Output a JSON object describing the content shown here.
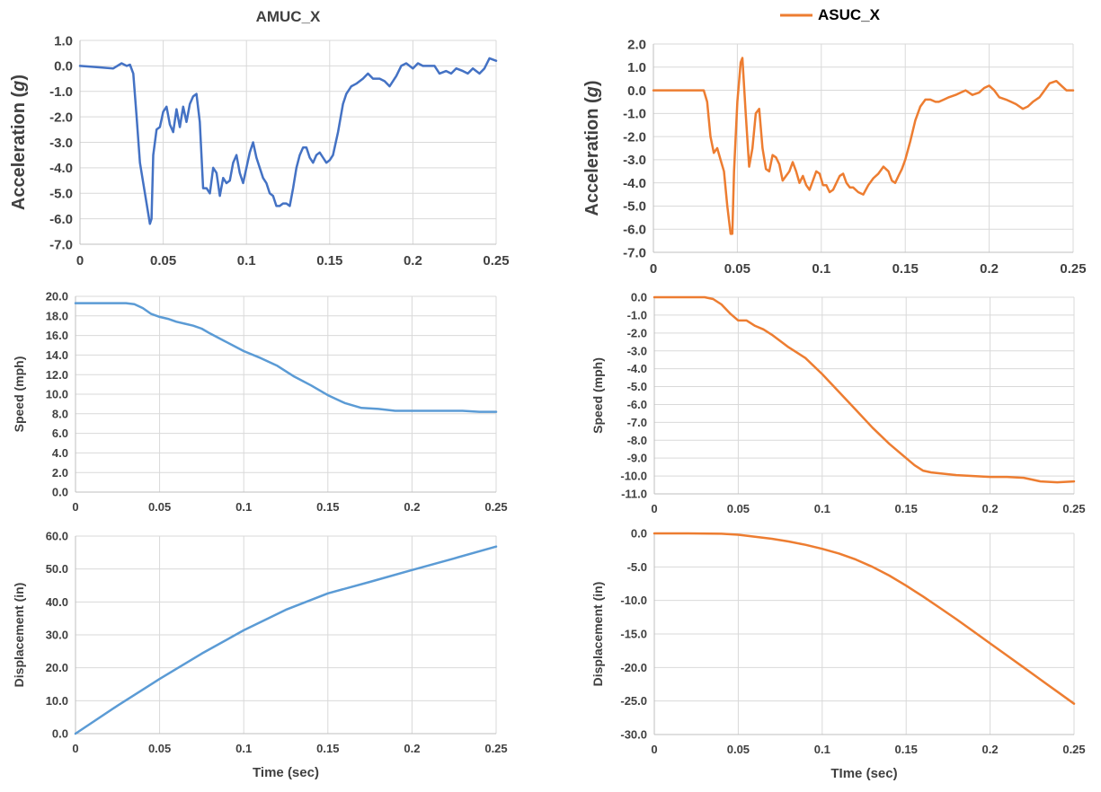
{
  "colors": {
    "left": "#4472C4",
    "left_light": "#5B9BD5",
    "right": "#ED7D31",
    "grid": "#d9d9d9",
    "axis": "#bfbfbf",
    "text": "#404040"
  },
  "chart_data": [
    {
      "id": "left-acc",
      "type": "line",
      "title": "AMUC_X",
      "xlabel": "",
      "ylabel": "Acceleration (g)",
      "xlim": [
        0,
        0.25
      ],
      "ylim": [
        -7,
        1
      ],
      "xticks": [
        "0",
        "0.05",
        "0.1",
        "0.15",
        "0.2",
        "0.25"
      ],
      "yticks": [
        "1.0",
        "0.0",
        "-1.0",
        "-2.0",
        "-3.0",
        "-4.0",
        "-5.0",
        "-6.0",
        "-7.0"
      ],
      "series": [
        {
          "x": [
            0,
            0.01,
            0.02,
            0.025,
            0.028,
            0.03,
            0.032,
            0.034,
            0.036,
            0.038,
            0.04,
            0.042,
            0.043,
            0.044,
            0.046,
            0.048,
            0.05,
            0.052,
            0.054,
            0.056,
            0.058,
            0.06,
            0.062,
            0.064,
            0.066,
            0.068,
            0.07,
            0.072,
            0.074,
            0.076,
            0.078,
            0.08,
            0.082,
            0.084,
            0.086,
            0.088,
            0.09,
            0.092,
            0.094,
            0.096,
            0.098,
            0.1,
            0.102,
            0.104,
            0.106,
            0.108,
            0.11,
            0.112,
            0.114,
            0.116,
            0.118,
            0.12,
            0.122,
            0.124,
            0.126,
            0.128,
            0.13,
            0.132,
            0.134,
            0.136,
            0.138,
            0.14,
            0.142,
            0.144,
            0.146,
            0.148,
            0.15,
            0.152,
            0.155,
            0.158,
            0.16,
            0.163,
            0.166,
            0.17,
            0.173,
            0.176,
            0.18,
            0.183,
            0.186,
            0.19,
            0.193,
            0.196,
            0.2,
            0.203,
            0.206,
            0.21,
            0.213,
            0.216,
            0.22,
            0.223,
            0.226,
            0.23,
            0.233,
            0.236,
            0.24,
            0.243,
            0.246,
            0.25
          ],
          "y": [
            0,
            -0.05,
            -0.1,
            0.1,
            0,
            0.05,
            -0.3,
            -2,
            -3.8,
            -4.6,
            -5.4,
            -6.2,
            -6,
            -3.5,
            -2.5,
            -2.4,
            -1.8,
            -1.6,
            -2.3,
            -2.6,
            -1.7,
            -2.4,
            -1.6,
            -2.2,
            -1.5,
            -1.2,
            -1.1,
            -2.2,
            -4.8,
            -4.8,
            -5,
            -4,
            -4.2,
            -5.1,
            -4.4,
            -4.6,
            -4.5,
            -3.8,
            -3.5,
            -4.2,
            -4.6,
            -4,
            -3.4,
            -3,
            -3.6,
            -4,
            -4.4,
            -4.6,
            -5,
            -5.1,
            -5.5,
            -5.5,
            -5.4,
            -5.4,
            -5.5,
            -4.8,
            -4,
            -3.5,
            -3.2,
            -3.2,
            -3.6,
            -3.8,
            -3.5,
            -3.4,
            -3.6,
            -3.8,
            -3.7,
            -3.5,
            -2.6,
            -1.5,
            -1.1,
            -0.8,
            -0.7,
            -0.5,
            -0.3,
            -0.5,
            -0.5,
            -0.6,
            -0.8,
            -0.4,
            0,
            0.1,
            -0.1,
            0.1,
            0,
            0,
            0,
            -0.3,
            -0.2,
            -0.3,
            -0.1,
            -0.2,
            -0.3,
            -0.1,
            -0.3,
            -0.1,
            0.3,
            0.2
          ]
        }
      ]
    },
    {
      "id": "left-speed",
      "type": "line",
      "title": "",
      "xlabel": "",
      "ylabel": "Speed (mph)",
      "xlim": [
        0,
        0.25
      ],
      "ylim": [
        0,
        20
      ],
      "xticks": [
        "0",
        "0.05",
        "0.1",
        "0.15",
        "0.2",
        "0.25"
      ],
      "yticks": [
        "20.0",
        "18.0",
        "16.0",
        "14.0",
        "12.0",
        "10.0",
        "8.0",
        "6.0",
        "4.0",
        "2.0",
        "0.0"
      ],
      "series": [
        {
          "x": [
            0,
            0.01,
            0.02,
            0.03,
            0.035,
            0.04,
            0.045,
            0.05,
            0.055,
            0.06,
            0.065,
            0.07,
            0.075,
            0.08,
            0.09,
            0.1,
            0.11,
            0.12,
            0.13,
            0.14,
            0.15,
            0.16,
            0.17,
            0.18,
            0.19,
            0.2,
            0.22,
            0.23,
            0.24,
            0.25
          ],
          "y": [
            19.3,
            19.3,
            19.3,
            19.3,
            19.2,
            18.8,
            18.2,
            17.9,
            17.7,
            17.4,
            17.2,
            17,
            16.7,
            16.2,
            15.3,
            14.4,
            13.7,
            12.9,
            11.8,
            10.9,
            9.9,
            9.1,
            8.6,
            8.5,
            8.3,
            8.3,
            8.3,
            8.3,
            8.2,
            8.2
          ]
        }
      ]
    },
    {
      "id": "left-disp",
      "type": "line",
      "title": "",
      "xlabel": "Time (sec)",
      "ylabel": "Displacement (in)",
      "xlim": [
        0,
        0.25
      ],
      "ylim": [
        0,
        60
      ],
      "xticks": [
        "0",
        "0.05",
        "0.1",
        "0.15",
        "0.2",
        "0.25"
      ],
      "yticks": [
        "60.0",
        "50.0",
        "40.0",
        "30.0",
        "20.0",
        "10.0",
        "0.0"
      ],
      "series": [
        {
          "x": [
            0,
            0.025,
            0.05,
            0.075,
            0.1,
            0.125,
            0.15,
            0.175,
            0.2,
            0.225,
            0.25
          ],
          "y": [
            0,
            8.5,
            16.6,
            24.3,
            31.4,
            37.6,
            42.6,
            46.1,
            49.7,
            53.2,
            56.8
          ]
        }
      ]
    },
    {
      "id": "right-acc",
      "type": "line",
      "title": "",
      "legend": "ASUC_X",
      "legend_position": "top",
      "xlabel": "",
      "ylabel": "Acceleration (g)",
      "xlim": [
        0,
        0.25
      ],
      "ylim": [
        -7,
        2
      ],
      "xticks": [
        "0",
        "0.05",
        "0.1",
        "0.15",
        "0.2",
        "0.25"
      ],
      "yticks": [
        "2.0",
        "1.0",
        "0.0",
        "-1.0",
        "-2.0",
        "-3.0",
        "-4.0",
        "-5.0",
        "-6.0",
        "-7.0"
      ],
      "series": [
        {
          "name": "ASUC_X",
          "x": [
            0,
            0.01,
            0.02,
            0.03,
            0.032,
            0.034,
            0.036,
            0.038,
            0.04,
            0.042,
            0.044,
            0.046,
            0.047,
            0.048,
            0.05,
            0.052,
            0.053,
            0.055,
            0.057,
            0.059,
            0.061,
            0.063,
            0.065,
            0.067,
            0.069,
            0.071,
            0.073,
            0.075,
            0.077,
            0.079,
            0.081,
            0.083,
            0.085,
            0.087,
            0.089,
            0.091,
            0.093,
            0.095,
            0.097,
            0.099,
            0.101,
            0.103,
            0.105,
            0.107,
            0.109,
            0.111,
            0.113,
            0.115,
            0.117,
            0.119,
            0.122,
            0.125,
            0.128,
            0.131,
            0.134,
            0.137,
            0.14,
            0.142,
            0.144,
            0.146,
            0.148,
            0.15,
            0.153,
            0.156,
            0.159,
            0.162,
            0.165,
            0.168,
            0.17,
            0.173,
            0.176,
            0.18,
            0.183,
            0.186,
            0.19,
            0.194,
            0.197,
            0.2,
            0.203,
            0.206,
            0.21,
            0.213,
            0.216,
            0.22,
            0.223,
            0.226,
            0.23,
            0.233,
            0.236,
            0.24,
            0.243,
            0.246,
            0.25
          ],
          "y": [
            0,
            0,
            0,
            0,
            -0.5,
            -2,
            -2.7,
            -2.5,
            -3,
            -3.5,
            -5,
            -6.2,
            -6.2,
            -3.5,
            -0.5,
            1.2,
            1.4,
            -1,
            -3.3,
            -2.5,
            -1,
            -0.8,
            -2.5,
            -3.4,
            -3.5,
            -2.8,
            -2.9,
            -3.2,
            -3.9,
            -3.7,
            -3.5,
            -3.1,
            -3.5,
            -4,
            -3.7,
            -4.1,
            -4.3,
            -3.9,
            -3.5,
            -3.6,
            -4.1,
            -4.1,
            -4.4,
            -4.3,
            -4,
            -3.7,
            -3.6,
            -4,
            -4.2,
            -4.2,
            -4.4,
            -4.5,
            -4.1,
            -3.8,
            -3.6,
            -3.3,
            -3.5,
            -3.9,
            -4,
            -3.7,
            -3.4,
            -3,
            -2.2,
            -1.3,
            -0.7,
            -0.4,
            -0.4,
            -0.5,
            -0.5,
            -0.4,
            -0.3,
            -0.2,
            -0.1,
            0,
            -0.2,
            -0.1,
            0.1,
            0.2,
            0,
            -0.3,
            -0.4,
            -0.5,
            -0.6,
            -0.8,
            -0.7,
            -0.5,
            -0.3,
            0,
            0.3,
            0.4,
            0.2,
            0,
            0
          ]
        }
      ]
    },
    {
      "id": "right-speed",
      "type": "line",
      "title": "",
      "xlabel": "",
      "ylabel": "Speed (mph)",
      "xlim": [
        0,
        0.25
      ],
      "ylim": [
        -11,
        0
      ],
      "xticks": [
        "0",
        "0.05",
        "0.1",
        "0.15",
        "0.2",
        "0.25"
      ],
      "yticks": [
        "0.0",
        "-1.0",
        "-2.0",
        "-3.0",
        "-4.0",
        "-5.0",
        "-6.0",
        "-7.0",
        "-8.0",
        "-9.0",
        "-10.0",
        "-11.0"
      ],
      "series": [
        {
          "x": [
            0,
            0.01,
            0.02,
            0.03,
            0.035,
            0.04,
            0.045,
            0.05,
            0.055,
            0.06,
            0.065,
            0.07,
            0.08,
            0.09,
            0.1,
            0.11,
            0.12,
            0.13,
            0.14,
            0.15,
            0.155,
            0.16,
            0.165,
            0.17,
            0.18,
            0.19,
            0.2,
            0.21,
            0.22,
            0.23,
            0.24,
            0.25
          ],
          "y": [
            0,
            0,
            0,
            0,
            -0.1,
            -0.4,
            -0.9,
            -1.3,
            -1.3,
            -1.6,
            -1.8,
            -2.1,
            -2.8,
            -3.4,
            -4.3,
            -5.3,
            -6.3,
            -7.3,
            -8.2,
            -9,
            -9.4,
            -9.7,
            -9.8,
            -9.85,
            -9.95,
            -10,
            -10.05,
            -10.05,
            -10.1,
            -10.3,
            -10.35,
            -10.3
          ]
        }
      ]
    },
    {
      "id": "right-disp",
      "type": "line",
      "title": "",
      "xlabel": "TIme (sec)",
      "ylabel": "Displacement (in)",
      "xlim": [
        0,
        0.25
      ],
      "ylim": [
        -30,
        0
      ],
      "xticks": [
        "0",
        "0.05",
        "0.1",
        "0.15",
        "0.2",
        "0.25"
      ],
      "yticks": [
        "0.0",
        "-5.0",
        "-10.0",
        "-15.0",
        "-20.0",
        "-25.0",
        "-30.0"
      ],
      "series": [
        {
          "x": [
            0,
            0.02,
            0.04,
            0.05,
            0.06,
            0.07,
            0.08,
            0.09,
            0.1,
            0.11,
            0.12,
            0.13,
            0.14,
            0.15,
            0.16,
            0.17,
            0.18,
            0.19,
            0.2,
            0.21,
            0.22,
            0.23,
            0.24,
            0.25
          ],
          "y": [
            0,
            0,
            -0.05,
            -0.2,
            -0.5,
            -0.8,
            -1.2,
            -1.7,
            -2.3,
            -3,
            -3.9,
            -5,
            -6.3,
            -7.8,
            -9.4,
            -11.1,
            -12.8,
            -14.6,
            -16.4,
            -18.2,
            -20,
            -21.8,
            -23.6,
            -25.4
          ]
        }
      ]
    }
  ]
}
